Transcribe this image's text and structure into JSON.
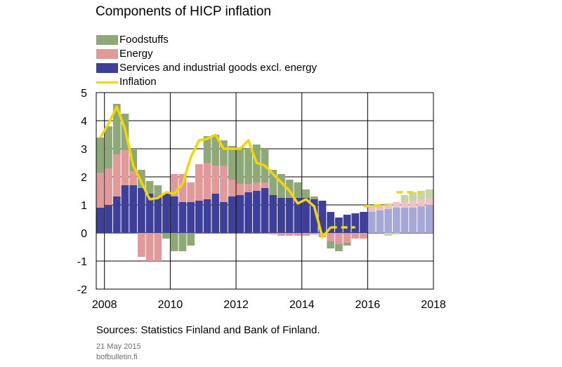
{
  "colors": {
    "foodstuffs": "#8fa877",
    "energy": "#e09a9a",
    "services": "#3e3f99",
    "inflation": "#f2d800",
    "forecast_foodstuffs": "#c3d6a8",
    "forecast_energy": "#efc3c6",
    "forecast_services": "#a6a8d6"
  },
  "chart_data": {
    "type": "bar",
    "title": "Components of HICP inflation",
    "stacked": true,
    "legend": [
      "Foodstuffs",
      "Energy",
      "Services and industrial goods excl. energy",
      "Inflation"
    ],
    "xlim": [
      2007.75,
      2018.0
    ],
    "ylim": [
      -2,
      5
    ],
    "x_ticks": [
      "2008",
      "2010",
      "2012",
      "2014",
      "2016",
      "2018"
    ],
    "y_ticks": [
      "5",
      "4",
      "3",
      "2",
      "1",
      "0",
      "-1",
      "-2"
    ],
    "grid": true,
    "forecast_from_index": 33,
    "x": [
      2007.75,
      2008.0,
      2008.25,
      2008.5,
      2008.75,
      2009.0,
      2009.25,
      2009.5,
      2009.75,
      2010.0,
      2010.25,
      2010.5,
      2010.75,
      2011.0,
      2011.25,
      2011.5,
      2011.75,
      2012.0,
      2012.25,
      2012.5,
      2012.75,
      2013.0,
      2013.25,
      2013.5,
      2013.75,
      2014.0,
      2014.25,
      2014.5,
      2014.75,
      2015.0,
      2015.25,
      2015.5,
      2015.75,
      2016.0,
      2016.25,
      2016.5,
      2016.75,
      2017.0,
      2017.25,
      2017.5,
      2017.75
    ],
    "series": [
      {
        "name": "Services and industrial goods excl. energy",
        "values": [
          0.9,
          1.0,
          1.3,
          1.7,
          1.7,
          1.6,
          1.4,
          1.3,
          1.4,
          1.3,
          1.1,
          1.1,
          1.15,
          1.2,
          1.4,
          1.1,
          1.3,
          1.35,
          1.45,
          1.5,
          1.6,
          1.35,
          1.25,
          1.25,
          1.25,
          1.25,
          1.2,
          1.15,
          0.75,
          0.55,
          0.65,
          0.7,
          0.75,
          0.75,
          0.8,
          0.85,
          0.9,
          0.9,
          0.9,
          0.95,
          1.0
        ]
      },
      {
        "name": "Energy",
        "values": [
          1.25,
          1.3,
          1.5,
          1.25,
          0.5,
          -0.85,
          -1.0,
          -1.0,
          0.0,
          0.8,
          1.0,
          0.7,
          1.3,
          1.3,
          1.0,
          1.3,
          0.6,
          0.4,
          0.3,
          0.3,
          0.2,
          -0.05,
          -0.1,
          -0.1,
          -0.1,
          -0.1,
          -0.05,
          -0.15,
          -0.3,
          -0.4,
          -0.35,
          -0.2,
          -0.2,
          0.15,
          0.15,
          0.2,
          0.2,
          0.2,
          0.25,
          0.25,
          0.25
        ]
      },
      {
        "name": "Foodstuffs",
        "values": [
          1.25,
          1.5,
          1.8,
          1.3,
          0.8,
          0.65,
          0.45,
          0.4,
          -0.2,
          -0.65,
          -0.65,
          -0.45,
          0.0,
          0.95,
          1.1,
          0.9,
          1.2,
          1.3,
          1.25,
          1.35,
          1.2,
          0.9,
          0.85,
          0.65,
          0.55,
          0.3,
          0.1,
          0.0,
          -0.25,
          -0.25,
          -0.1,
          0.0,
          0.0,
          0.05,
          0.05,
          -0.1,
          -0.05,
          0.25,
          0.3,
          0.3,
          0.3
        ]
      }
    ],
    "inflation": {
      "name": "Inflation",
      "x": [
        2007.875,
        2008.125,
        2008.375,
        2008.625,
        2008.875,
        2009.125,
        2009.375,
        2009.625,
        2009.875,
        2010.125,
        2010.375,
        2010.625,
        2010.875,
        2011.125,
        2011.375,
        2011.625,
        2011.875,
        2012.125,
        2012.375,
        2012.625,
        2012.875,
        2013.125,
        2013.375,
        2013.625,
        2013.875,
        2014.125,
        2014.375,
        2014.625,
        2014.875
      ],
      "values": [
        3.4,
        3.9,
        4.5,
        3.7,
        2.4,
        1.8,
        1.2,
        1.25,
        1.45,
        1.4,
        1.75,
        2.7,
        3.3,
        3.35,
        3.5,
        3.0,
        3.0,
        3.0,
        3.3,
        2.5,
        2.4,
        2.1,
        1.8,
        1.5,
        1.05,
        1.2,
        0.95,
        -0.15,
        0.2
      ],
      "forecast_segments": [
        {
          "x": [
            2014.875,
            2015.625
          ],
          "values": [
            0.2,
            0.2
          ]
        },
        {
          "x": [
            2015.875,
            2016.625
          ],
          "values": [
            0.95,
            1.0
          ]
        },
        {
          "x": [
            2016.875,
            2017.625
          ],
          "values": [
            1.45,
            1.45
          ]
        }
      ]
    }
  },
  "source": "Sources: Statistics Finland and Bank of Finland.",
  "date": "21 May 2015",
  "site": "bofbulletin.fi"
}
